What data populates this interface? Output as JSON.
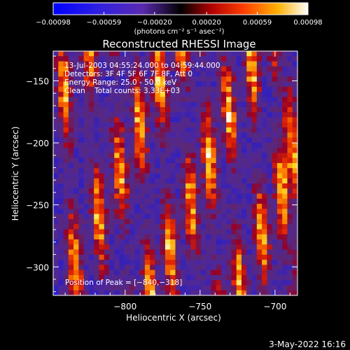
{
  "chart_data": {
    "type": "heatmap",
    "title": "Reconstructed RHESSI Image",
    "xlabel": "Heliocentric X (arcsec)",
    "ylabel": "Heliocentric Y (arcsec)",
    "xlim": [
      -848,
      -685
    ],
    "ylim": [
      -323,
      -126
    ],
    "x_ticks": [
      -800,
      -750,
      -700
    ],
    "x_tick_labels": [
      "−800",
      "−750",
      "−700"
    ],
    "y_ticks": [
      -150,
      -200,
      -250,
      -300
    ],
    "y_tick_labels": [
      "−150",
      "−200",
      "−250",
      "−300"
    ],
    "colorbar": {
      "min": -0.00098,
      "max": 0.00098,
      "ticks": [
        -0.00098,
        -0.00059,
        -0.0002,
        0.0002,
        0.00059,
        0.00098
      ],
      "tick_labels": [
        "−0.00098",
        "−0.00059",
        "−0.00020",
        "0.00020",
        "0.00059",
        "0.00098"
      ],
      "unit_label": "(photons cm⁻² s⁻¹ asec⁻²)"
    },
    "annotations": [
      "13-Jul-2003 04:55:24.000 to 04:59:44.000",
      "Detectors: 3F 4F 5F 6F 7F 8F, Att 0",
      "Energy Range: 25.0 - 50.0 keV",
      "Clean    Total counts: 3.33E+03"
    ],
    "peak_label": "Position of Peak = [−840,−318]",
    "peak": [
      -840,
      -318
    ],
    "stripes_x": [
      -842,
      -824,
      -808,
      -793,
      -778,
      -762,
      -748,
      -733,
      -716,
      -701,
      -692
    ]
  },
  "footer": {
    "date": "3-May-2022 16:16"
  }
}
